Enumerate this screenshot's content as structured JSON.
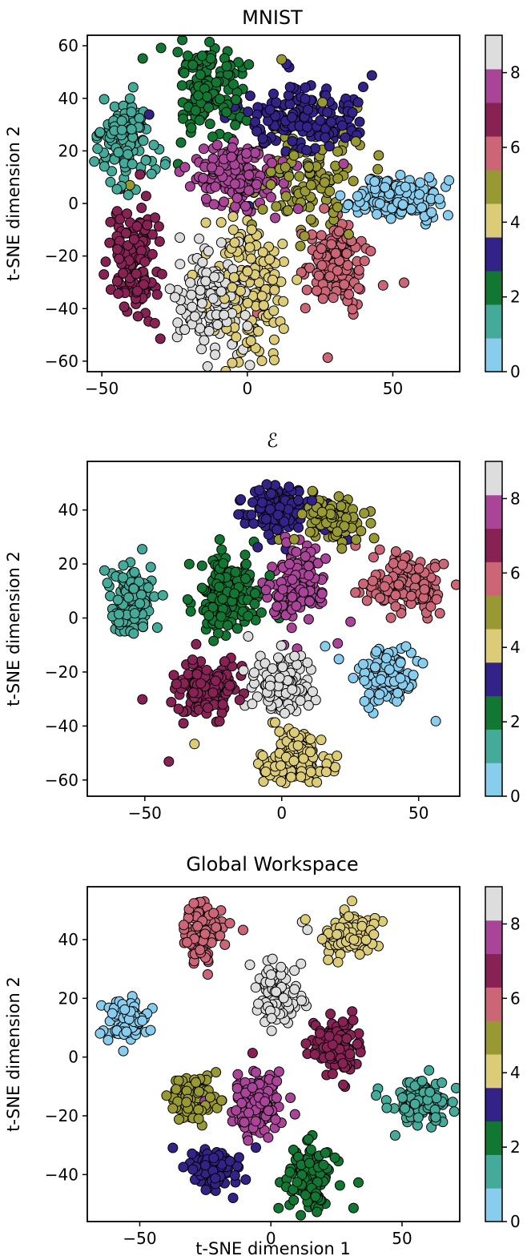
{
  "palette": {
    "0": "#88CCEE",
    "1": "#44AA99",
    "2": "#117733",
    "3": "#332288",
    "4": "#DDCC77",
    "5": "#999933",
    "6": "#CC6677",
    "7": "#882255",
    "8": "#AA4499",
    "9": "#DDDDDD"
  },
  "colorbar": {
    "ticks": [
      "0",
      "2",
      "4",
      "6",
      "8"
    ],
    "min": 0,
    "max": 9
  },
  "chart_data": [
    {
      "type": "scatter",
      "title": "MNIST",
      "xlabel": "",
      "ylabel": "t-SNE dimension 2",
      "xlim": [
        -55,
        73
      ],
      "ylim": [
        -64,
        64
      ],
      "xticks": [
        {
          "v": -50,
          "t": "−50"
        },
        {
          "v": 0,
          "t": "0"
        },
        {
          "v": 50,
          "t": "50"
        }
      ],
      "yticks": [
        {
          "v": -60,
          "t": "−60"
        },
        {
          "v": -40,
          "t": "−40"
        },
        {
          "v": -20,
          "t": "−20"
        },
        {
          "v": 0,
          "t": "0"
        },
        {
          "v": 20,
          "t": "20"
        },
        {
          "v": 40,
          "t": "40"
        },
        {
          "v": 60,
          "t": "60"
        }
      ],
      "clusters": [
        {
          "label": 1,
          "x": -42,
          "y": 22,
          "sx": 4.5,
          "sy": 9,
          "n": 120
        },
        {
          "label": 2,
          "x": -12,
          "y": 42,
          "sx": 6,
          "sy": 9,
          "n": 130
        },
        {
          "label": 3,
          "x": 18,
          "y": 32,
          "sx": 10,
          "sy": 6,
          "n": 170
        },
        {
          "label": 8,
          "x": -4,
          "y": 11,
          "sx": 8,
          "sy": 7,
          "n": 160
        },
        {
          "label": 5,
          "x": 20,
          "y": 10,
          "sx": 8,
          "sy": 9,
          "n": 110
        },
        {
          "label": 0,
          "x": 52,
          "y": 2,
          "sx": 7,
          "sy": 4,
          "n": 150
        },
        {
          "label": 7,
          "x": -38,
          "y": -20,
          "sx": 4,
          "sy": 11,
          "n": 130
        },
        {
          "label": 9,
          "x": -12,
          "y": -36,
          "sx": 6,
          "sy": 10,
          "n": 150
        },
        {
          "label": 4,
          "x": 0,
          "y": -30,
          "sx": 6,
          "sy": 14,
          "n": 150
        },
        {
          "label": 6,
          "x": 30,
          "y": -23,
          "sx": 5,
          "sy": 9,
          "n": 150
        }
      ]
    },
    {
      "type": "scatter",
      "title": "ℰ",
      "xlabel": "",
      "ylabel": "t-SNE dimension 2",
      "xlim": [
        -71,
        65
      ],
      "ylim": [
        -66,
        58
      ],
      "xticks": [
        {
          "v": -50,
          "t": "−50"
        },
        {
          "v": 0,
          "t": "0"
        },
        {
          "v": 50,
          "t": "50"
        }
      ],
      "yticks": [
        {
          "v": -60,
          "t": "−60"
        },
        {
          "v": -40,
          "t": "−40"
        },
        {
          "v": -20,
          "t": "−20"
        },
        {
          "v": 0,
          "t": "0"
        },
        {
          "v": 20,
          "t": "20"
        },
        {
          "v": 40,
          "t": "40"
        }
      ],
      "clusters": [
        {
          "label": 1,
          "x": -55,
          "y": 7,
          "sx": 4,
          "sy": 7,
          "n": 120
        },
        {
          "label": 2,
          "x": -20,
          "y": 9,
          "sx": 6,
          "sy": 7,
          "n": 140
        },
        {
          "label": 3,
          "x": 0,
          "y": 40,
          "sx": 6,
          "sy": 5,
          "n": 140
        },
        {
          "label": 5,
          "x": 18,
          "y": 37,
          "sx": 5,
          "sy": 4,
          "n": 100
        },
        {
          "label": 8,
          "x": 6,
          "y": 13,
          "sx": 5,
          "sy": 8,
          "n": 140
        },
        {
          "label": 6,
          "x": 45,
          "y": 12,
          "sx": 7,
          "sy": 5,
          "n": 150
        },
        {
          "label": 7,
          "x": -27,
          "y": -26,
          "sx": 6,
          "sy": 5,
          "n": 140
        },
        {
          "label": 9,
          "x": 0,
          "y": -24,
          "sx": 5,
          "sy": 5,
          "n": 150
        },
        {
          "label": 0,
          "x": 39,
          "y": -21,
          "sx": 5,
          "sy": 5,
          "n": 140
        },
        {
          "label": 4,
          "x": 5,
          "y": -52,
          "sx": 6,
          "sy": 5,
          "n": 140
        }
      ]
    },
    {
      "type": "scatter",
      "title": "Global Workspace",
      "xlabel": "t-SNE dimension 1",
      "ylabel": "t-SNE dimension 2",
      "xlim": [
        -70,
        72
      ],
      "ylim": [
        -56,
        58
      ],
      "xticks": [
        {
          "v": -50,
          "t": "−50"
        },
        {
          "v": 0,
          "t": "0"
        },
        {
          "v": 50,
          "t": "50"
        }
      ],
      "yticks": [
        {
          "v": -40,
          "t": "−40"
        },
        {
          "v": -20,
          "t": "−20"
        },
        {
          "v": 0,
          "t": "0"
        },
        {
          "v": 20,
          "t": "20"
        },
        {
          "v": 40,
          "t": "40"
        }
      ],
      "clusters": [
        {
          "label": 6,
          "x": -26,
          "y": 42,
          "sx": 3.5,
          "sy": 4.5,
          "n": 110
        },
        {
          "label": 4,
          "x": 30,
          "y": 42,
          "sx": 5,
          "sy": 3.5,
          "n": 110
        },
        {
          "label": 9,
          "x": 3,
          "y": 21,
          "sx": 4,
          "sy": 5,
          "n": 110
        },
        {
          "label": 0,
          "x": -55,
          "y": 13,
          "sx": 4,
          "sy": 3.5,
          "n": 100
        },
        {
          "label": 7,
          "x": 25,
          "y": 4,
          "sx": 4.5,
          "sy": 4.5,
          "n": 110
        },
        {
          "label": 5,
          "x": -30,
          "y": -14,
          "sx": 4,
          "sy": 4,
          "n": 100
        },
        {
          "label": 8,
          "x": -6,
          "y": -16,
          "sx": 4.5,
          "sy": 5,
          "n": 120
        },
        {
          "label": 1,
          "x": 58,
          "y": -15,
          "sx": 5,
          "sy": 4,
          "n": 110
        },
        {
          "label": 3,
          "x": -22,
          "y": -38,
          "sx": 4.5,
          "sy": 3.5,
          "n": 110
        },
        {
          "label": 2,
          "x": 15,
          "y": -42,
          "sx": 4,
          "sy": 5,
          "n": 110
        }
      ]
    }
  ]
}
